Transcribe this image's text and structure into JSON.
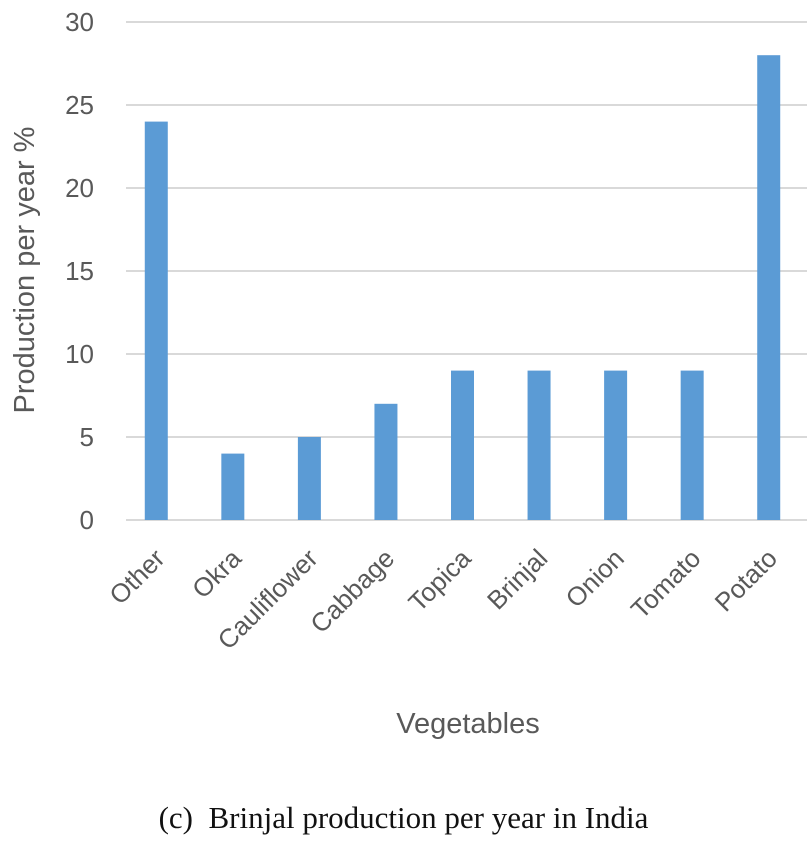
{
  "chart_data": {
    "type": "bar",
    "title": "",
    "xlabel": "Vegetables",
    "ylabel": "Production per year %",
    "categories": [
      "Other",
      "Okra",
      "Cauliflower",
      "Cabbage",
      "Topica",
      "Brinjal",
      "Onion",
      "Tomato",
      "Potato"
    ],
    "values": [
      24,
      4,
      5,
      7,
      9,
      9,
      9,
      9,
      28
    ],
    "ylim": [
      0,
      30
    ],
    "yticks": [
      0,
      5,
      10,
      15,
      20,
      25,
      30
    ],
    "grid": true,
    "legend": "none",
    "bar_color": "#5b9bd5"
  },
  "caption": "(c)  Brinjal production per year in India"
}
